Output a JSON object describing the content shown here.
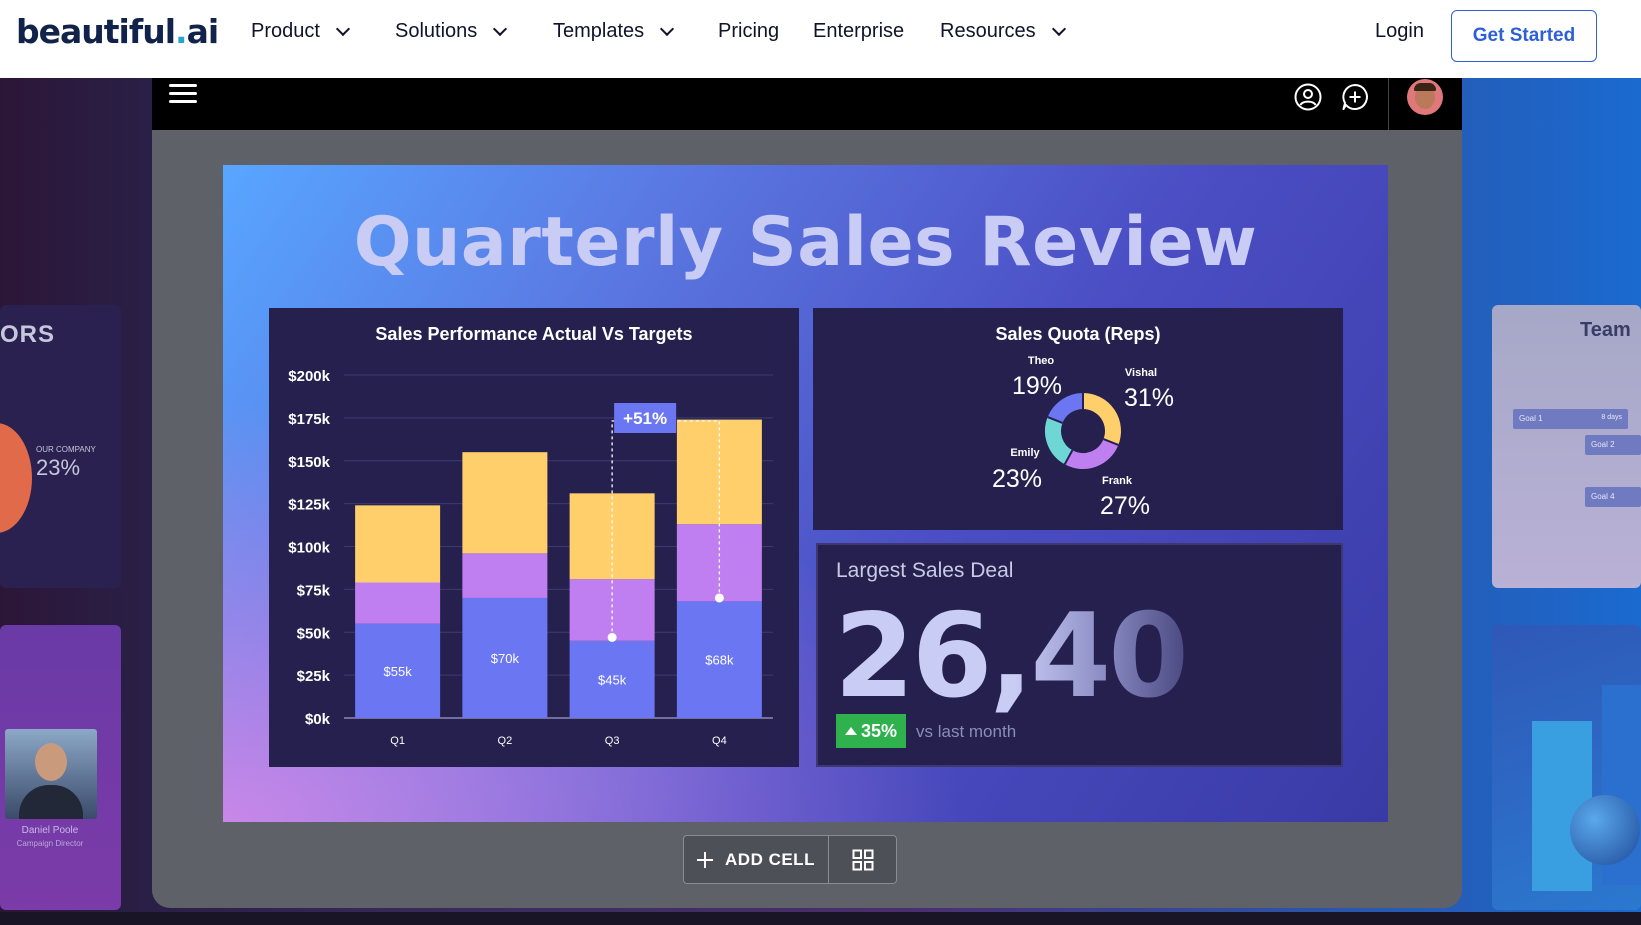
{
  "nav": {
    "logo_main": "beautiful",
    "logo_dot": ".",
    "logo_suffix": "ai",
    "items": [
      {
        "label": "Product",
        "has_dropdown": true
      },
      {
        "label": "Solutions",
        "has_dropdown": true
      },
      {
        "label": "Templates",
        "has_dropdown": true
      },
      {
        "label": "Pricing",
        "has_dropdown": false
      },
      {
        "label": "Enterprise",
        "has_dropdown": false
      },
      {
        "label": "Resources",
        "has_dropdown": true
      }
    ],
    "login": "Login",
    "cta": "Get Started"
  },
  "editor": {
    "toolbar_icons": [
      "menu-icon",
      "user-circle-icon",
      "add-comment-icon",
      "avatar"
    ]
  },
  "slide": {
    "title": "Quarterly Sales Review",
    "chart_panel_title": "Sales Performance Actual Vs Targets",
    "quota_panel_title": "Sales Quota (Reps)",
    "deal": {
      "label": "Largest Sales Deal",
      "value": "26,40",
      "value_faded": "0",
      "badge": "35%",
      "comparison": "vs last month"
    }
  },
  "chart_data": [
    {
      "type": "bar",
      "title": "Sales Performance Actual Vs Targets",
      "categories": [
        "Q1",
        "Q2",
        "Q3",
        "Q4"
      ],
      "y_ticks": [
        "$0k",
        "$25k",
        "$50k",
        "$75k",
        "$100k",
        "$125k",
        "$150k",
        "$175k",
        "$200k"
      ],
      "ylim": [
        0,
        200
      ],
      "stacked": true,
      "series": [
        {
          "values": [
            55,
            70,
            45,
            68
          ],
          "color": "#6b76f2",
          "data_labels": [
            "$55k",
            "$70k",
            "$45k",
            "$68k"
          ]
        },
        {
          "values": [
            24,
            26,
            36,
            45
          ],
          "color": "#c07ff0"
        },
        {
          "values": [
            45,
            59,
            50,
            61
          ],
          "color": "#ffcf6b"
        }
      ],
      "annotation": {
        "label": "+51%",
        "from_category": "Q3",
        "from_value": 47,
        "to_category": "Q4",
        "to_value": 70
      },
      "grid": true
    },
    {
      "type": "pie",
      "title": "Sales Quota (Reps)",
      "donut": true,
      "slices": [
        {
          "label": "Vishal",
          "value": 31,
          "display": "31%",
          "color": "#ffcf6b"
        },
        {
          "label": "Frank",
          "value": 27,
          "display": "27%",
          "color": "#c07ff0"
        },
        {
          "label": "Emily",
          "value": 23,
          "display": "23%",
          "color": "#6fd6d6"
        },
        {
          "label": "Theo",
          "value": 19,
          "display": "19%",
          "color": "#6b76f2"
        }
      ]
    }
  ],
  "add_cell": {
    "label": "ADD CELL"
  },
  "side_cards": {
    "left_top_heading": "ORS",
    "left_top_small": "OUR COMPANY",
    "left_top_value": "23%",
    "left_bottom_name": "Daniel Poole",
    "left_bottom_role": "Campaign Director",
    "right_top_heading": "Team",
    "goals": [
      "Goal 1",
      "Goal 2",
      "Goal 4"
    ],
    "goal_days": "8 days"
  }
}
